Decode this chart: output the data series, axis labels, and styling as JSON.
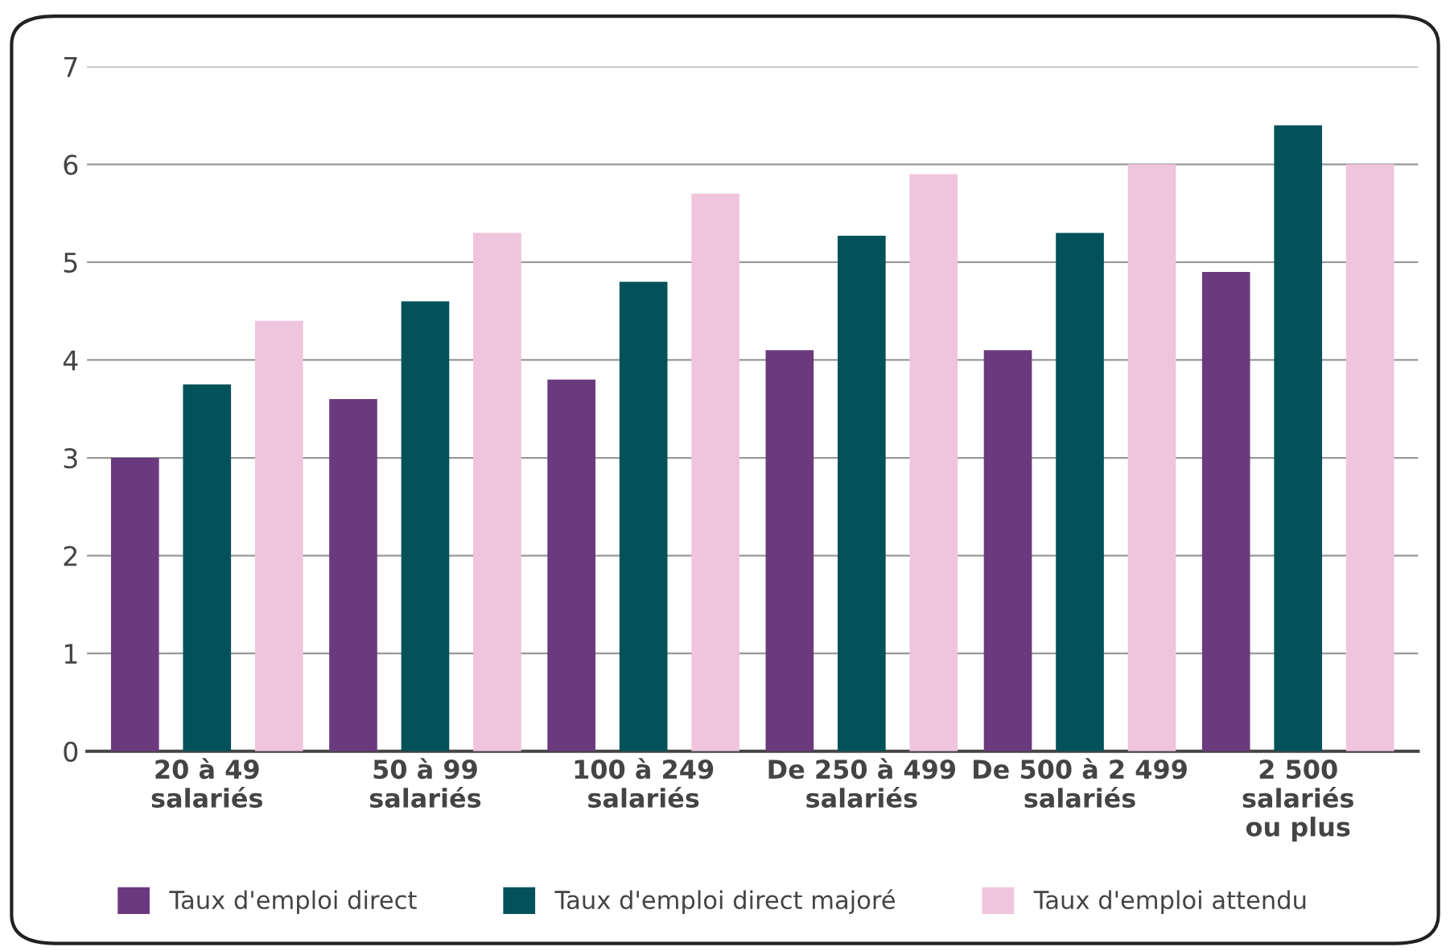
{
  "chart_data": {
    "type": "bar",
    "categories": [
      "20 à 49\nsalariés",
      "50 à 99\nsalariés",
      "100 à 249\nsalariés",
      "De 250 à 499\nsalariés",
      "De 500 à 2 499\nsalariés",
      "2 500\nsalariés\nou plus"
    ],
    "series": [
      {
        "name": "Taux d'emploi direct",
        "color": "#6b3a7e",
        "values": [
          3.0,
          3.6,
          3.8,
          4.1,
          4.1,
          4.9
        ]
      },
      {
        "name": "Taux d'emploi direct majoré",
        "color": "#03525a",
        "values": [
          3.75,
          4.6,
          4.8,
          5.27,
          5.3,
          6.4
        ]
      },
      {
        "name": "Taux d'emploi attendu",
        "color": "#f0c4dc",
        "values": [
          4.4,
          5.3,
          5.7,
          5.9,
          6.0,
          6.0
        ]
      }
    ],
    "ylim": [
      0,
      7
    ],
    "yticks": [
      0,
      1,
      2,
      3,
      4,
      5,
      6,
      7
    ],
    "grid": "y",
    "legend": "bottom"
  }
}
